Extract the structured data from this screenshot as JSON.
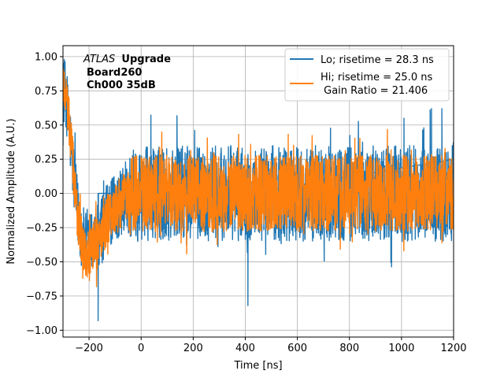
{
  "chart_data": {
    "type": "line",
    "title": "",
    "xlabel": "Time [ns]",
    "ylabel": "Normalized Amplitude (A.U.)",
    "xlim": [
      -300,
      1200
    ],
    "ylim": [
      -1.05,
      1.08
    ],
    "xticks": [
      -200,
      0,
      200,
      400,
      600,
      800,
      1000,
      1200
    ],
    "yticks": [
      -1.0,
      -0.75,
      -0.5,
      -0.25,
      0.0,
      0.25,
      0.5,
      0.75,
      1.0
    ],
    "xtick_labels": [
      "−200",
      "0",
      "200",
      "400",
      "600",
      "800",
      "1000",
      "1200"
    ],
    "ytick_labels": [
      "−1.00",
      "−0.75",
      "−0.50",
      "−0.25",
      "0.00",
      "0.25",
      "0.50",
      "0.75",
      "1.00"
    ],
    "grid": true,
    "legend_position": "top-right",
    "annotation": {
      "line1_italic": "ATLAS",
      "line1_bold": "Upgrade",
      "line2": "Board260",
      "line3": "Ch000 35dB"
    },
    "series": [
      {
        "name": "Lo; risetime = 28.3 ns",
        "color": "#1f77b4",
        "envelope": {
          "x": [
            -295,
            -285,
            -275,
            -265,
            -255,
            -245,
            -235,
            -225,
            -215,
            -205,
            -195,
            -185,
            -175,
            -165,
            -155,
            -145,
            -135,
            -125,
            -115,
            -105,
            -95,
            -85,
            -75,
            -65,
            -55,
            -45,
            -35
          ],
          "mean": [
            0.75,
            0.65,
            0.45,
            0.25,
            0.05,
            -0.12,
            -0.25,
            -0.32,
            -0.38,
            -0.4,
            -0.38,
            -0.35,
            -0.33,
            -0.3,
            -0.27,
            -0.24,
            -0.2,
            -0.17,
            -0.14,
            -0.12,
            -0.1,
            -0.08,
            -0.06,
            -0.05,
            -0.04,
            -0.03,
            -0.02
          ]
        },
        "noise_amplitude": 0.35,
        "extremes": [
          {
            "x": 410,
            "y": -0.82
          },
          {
            "x": -165,
            "y": -0.93
          },
          {
            "x": 1110,
            "y": 0.61
          },
          {
            "x": 1115,
            "y": 0.62
          },
          {
            "x": 1155,
            "y": 0.62
          },
          {
            "x": 1195,
            "y": 0.35
          }
        ]
      },
      {
        "name": "Hi; risetime = 25.0 ns\n Gain Ratio = 21.406",
        "name_line1": "Hi; risetime = 25.0 ns",
        "name_line2": " Gain Ratio = 21.406",
        "color": "#ff7f0e",
        "envelope": {
          "x": [
            -295,
            -285,
            -275,
            -265,
            -255,
            -245,
            -235,
            -225,
            -215,
            -205,
            -195,
            -185,
            -175,
            -165,
            -155,
            -145,
            -135,
            -125,
            -115,
            -105,
            -95,
            -85,
            -75,
            -65,
            -55,
            -45,
            -35
          ],
          "mean": [
            0.8,
            0.7,
            0.5,
            0.28,
            0.05,
            -0.15,
            -0.28,
            -0.36,
            -0.42,
            -0.44,
            -0.42,
            -0.4,
            -0.37,
            -0.33,
            -0.3,
            -0.26,
            -0.22,
            -0.19,
            -0.16,
            -0.13,
            -0.11,
            -0.09,
            -0.07,
            -0.05,
            -0.04,
            -0.03,
            -0.02
          ]
        },
        "noise_amplitude": 0.28
      }
    ]
  }
}
